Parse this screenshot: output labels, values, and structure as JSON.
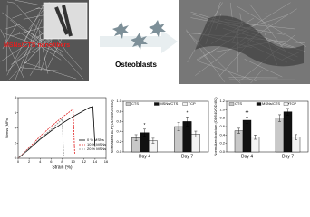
{
  "image_labels": {
    "nanofibers": "MSNs/CTS nanofibers",
    "cells": "Osteoblasts"
  },
  "chart_data": [
    {
      "type": "line",
      "xlabel": "Strain (%)",
      "ylabel": "Stress (MPa)",
      "xlim": [
        0,
        16
      ],
      "xticks": [
        0,
        2,
        4,
        6,
        8,
        10,
        12,
        14,
        16
      ],
      "ylim": [
        0,
        8
      ],
      "yticks": [
        0,
        2,
        4,
        6,
        8
      ],
      "legend": "lower right",
      "series": [
        {
          "name": "0 % MSNs",
          "color": "#000000",
          "dash": false,
          "x": [
            0,
            2,
            4,
            6,
            8,
            10,
            12,
            13,
            13.6,
            14
          ],
          "values": [
            0,
            1.2,
            2.5,
            3.6,
            4.6,
            5.5,
            6.3,
            6.7,
            6.8,
            1.5
          ]
        },
        {
          "name": "10 % MSNs",
          "color": "#e02020",
          "dash": true,
          "x": [
            0,
            2,
            4,
            6,
            8,
            9.5,
            10,
            10.3
          ],
          "values": [
            0,
            1.4,
            2.9,
            4.2,
            5.4,
            6.2,
            6.5,
            0.5
          ]
        },
        {
          "name": "20 % MSNs",
          "color": "#888888",
          "dash": true,
          "x": [
            0,
            2,
            4,
            6,
            7.5,
            8,
            8.3
          ],
          "values": [
            0,
            1.3,
            2.6,
            3.8,
            4.8,
            5.2,
            0.3
          ]
        }
      ]
    },
    {
      "type": "bar",
      "ylabel": "Normalized ALP (OD405/OD492)",
      "categories": [
        "Day 4",
        "Day 7"
      ],
      "ylim": [
        0,
        1.0
      ],
      "yticks": [
        {
          "value": 0,
          "label": "0.0"
        },
        0.2,
        0.4,
        0.6,
        0.8,
        {
          "value": 1,
          "label": "1.0"
        }
      ],
      "series": [
        {
          "name": "CTS",
          "color": "#c8c8c8",
          "values": [
            0.28,
            0.5
          ],
          "errors": [
            0.06,
            0.08
          ]
        },
        {
          "name": "MSNs/CTS",
          "color": "#111111",
          "values": [
            0.38,
            0.6
          ],
          "errors": [
            0.07,
            0.09
          ]
        },
        {
          "name": "TCP",
          "color": "#f4f4f4",
          "values": [
            0.22,
            0.35
          ],
          "errors": [
            0.05,
            0.06
          ]
        }
      ],
      "annotations": [
        "*",
        "*"
      ]
    },
    {
      "type": "bar",
      "ylabel": "Normalized calcium (OD540/OD492)",
      "categories": [
        "Day 4",
        "Day 7"
      ],
      "ylim": [
        0,
        1.2
      ],
      "yticks": [
        {
          "value": 0,
          "label": "0.0"
        },
        0.2,
        0.4,
        0.6,
        0.8,
        {
          "value": 1,
          "label": "1.0"
        },
        1.2
      ],
      "series": [
        {
          "name": "CTS",
          "color": "#c8c8c8",
          "values": [
            0.5,
            0.8
          ],
          "errors": [
            0.06,
            0.08
          ]
        },
        {
          "name": "MSNs/CTS",
          "color": "#111111",
          "values": [
            0.75,
            0.95
          ],
          "errors": [
            0.08,
            0.08
          ]
        },
        {
          "name": "TCP",
          "color": "#f4f4f4",
          "values": [
            0.35,
            0.35
          ],
          "errors": [
            0.05,
            0.06
          ]
        }
      ],
      "annotations": [
        "**",
        "**"
      ]
    }
  ]
}
